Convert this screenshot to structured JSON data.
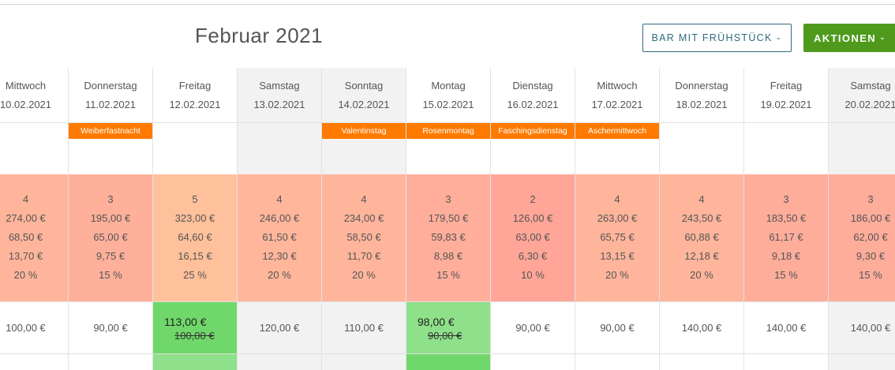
{
  "header": {
    "month_title": "Februar 2021",
    "rate_button_label": "BAR MIT FRÜHSTÜCK",
    "actions_button_label": "AKTIONEN",
    "chevron": "⌄"
  },
  "colors": {
    "event_tag": "#ff7a00",
    "actions_button": "#4f9a1c",
    "rate_button_border": "#2e6b80",
    "price_changed": "#70d86a",
    "price_changed_light": "#8fe08a",
    "weekend_bg": "#f2f2f2"
  },
  "days": [
    {
      "name": "Mittwoch",
      "date": "10.02.2021",
      "weekend": false,
      "event": "",
      "bg": "#ffb59b",
      "stats": [
        "4",
        "274,00 €",
        "68,50 €",
        "13,70 €",
        "20 %"
      ],
      "price": "100,00 €",
      "new_price": "",
      "old_price": ""
    },
    {
      "name": "Donnerstag",
      "date": "11.02.2021",
      "weekend": false,
      "event": "Weiberfastnacht",
      "bg": "#ffb09b",
      "stats": [
        "3",
        "195,00 €",
        "65,00 €",
        "9,75 €",
        "15 %"
      ],
      "price": "90,00 €",
      "new_price": "",
      "old_price": ""
    },
    {
      "name": "Freitag",
      "date": "12.02.2021",
      "weekend": false,
      "event": "",
      "bg": "#ffc19b",
      "stats": [
        "5",
        "323,00 €",
        "64,60 €",
        "16,15 €",
        "25 %"
      ],
      "price": "",
      "new_price": "113,00 €",
      "old_price": "100,00 €"
    },
    {
      "name": "Samstag",
      "date": "13.02.2021",
      "weekend": true,
      "event": "",
      "bg": "#ffb69b",
      "stats": [
        "4",
        "246,00 €",
        "61,50 €",
        "12,30 €",
        "20 %"
      ],
      "price": "120,00 €",
      "new_price": "",
      "old_price": ""
    },
    {
      "name": "Sonntag",
      "date": "14.02.2021",
      "weekend": true,
      "event": "Valentinstag",
      "bg": "#ffb59b",
      "stats": [
        "4",
        "234,00 €",
        "58,50 €",
        "11,70 €",
        "20 %"
      ],
      "price": "110,00 €",
      "new_price": "",
      "old_price": ""
    },
    {
      "name": "Montag",
      "date": "15.02.2021",
      "weekend": false,
      "event": "Rosenmontag",
      "bg": "#ffae9b",
      "stats": [
        "3",
        "179,50 €",
        "59,83 €",
        "8,98 €",
        "15 %"
      ],
      "price": "",
      "new_price": "98,00 €",
      "old_price": "90,00 €"
    },
    {
      "name": "Dienstag",
      "date": "16.02.2021",
      "weekend": false,
      "event": "Faschingsdienstag",
      "bg": "#ffa698",
      "stats": [
        "2",
        "126,00 €",
        "63,00 €",
        "6,30 €",
        "10 %"
      ],
      "price": "90,00 €",
      "new_price": "",
      "old_price": ""
    },
    {
      "name": "Mittwoch",
      "date": "17.02.2021",
      "weekend": false,
      "event": "Aschermittwoch",
      "bg": "#ffb59b",
      "stats": [
        "4",
        "263,00 €",
        "65,75 €",
        "13,15 €",
        "20 %"
      ],
      "price": "90,00 €",
      "new_price": "",
      "old_price": ""
    },
    {
      "name": "Donnerstag",
      "date": "18.02.2021",
      "weekend": false,
      "event": "",
      "bg": "#ffb59b",
      "stats": [
        "4",
        "243,50 €",
        "60,88 €",
        "12,18 €",
        "20 %"
      ],
      "price": "140,00 €",
      "new_price": "",
      "old_price": ""
    },
    {
      "name": "Freitag",
      "date": "19.02.2021",
      "weekend": false,
      "event": "",
      "bg": "#ffad9b",
      "stats": [
        "3",
        "183,50 €",
        "61,17 €",
        "9,18 €",
        "15 %"
      ],
      "price": "140,00 €",
      "new_price": "",
      "old_price": ""
    },
    {
      "name": "Samstag",
      "date": "20.02.2021",
      "weekend": true,
      "event": "",
      "bg": "#ffad9b",
      "stats": [
        "3",
        "186,00 €",
        "62,00 €",
        "9,30 €",
        "15 %"
      ],
      "price": "140,00 €",
      "new_price": "",
      "old_price": ""
    }
  ]
}
